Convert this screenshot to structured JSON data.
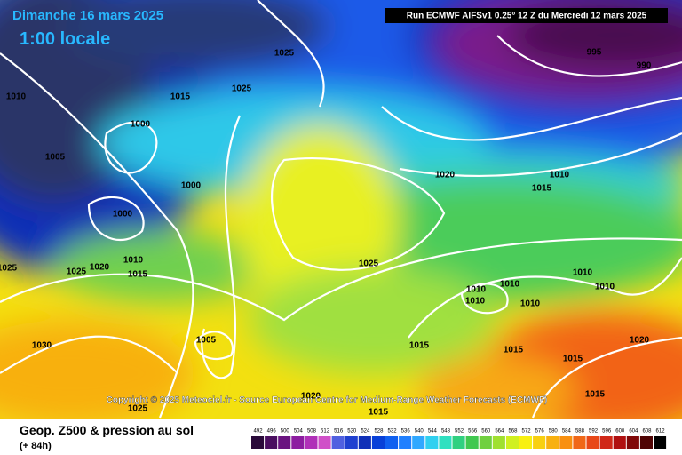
{
  "header": {
    "date": "Dimanche 16 mars 2025",
    "time": "1:00 locale",
    "run": "Run ECMWF AIFSv1 0.25° 12 Z du Mercredi 12 mars 2025"
  },
  "copyright": "Copyright © 2025 Meteociel.fr - Source European Centre for Medium-Range Weather Forecasts (ECMWF)",
  "footer": {
    "title": "Geop. Z500 & pression au sol",
    "lead": "(+ 84h)"
  },
  "isobar_labels": [
    1025,
    1025,
    1015,
    1010,
    1000,
    1005,
    1000,
    1000,
    1025,
    1020,
    1010,
    1015,
    1025,
    1030,
    1005,
    1025,
    1020,
    1015,
    1025,
    1020,
    1015,
    1010,
    995,
    990,
    1010,
    1010,
    1010,
    1010,
    1010,
    1010,
    1015,
    1015,
    1020,
    1015,
    1015
  ],
  "colorbar": {
    "ticks": [
      492,
      496,
      500,
      504,
      508,
      512,
      516,
      520,
      524,
      528,
      532,
      536,
      540,
      544,
      548,
      552,
      556,
      560,
      564,
      568,
      572,
      576,
      580,
      584,
      588,
      592,
      596,
      600,
      604,
      608,
      612
    ]
  }
}
